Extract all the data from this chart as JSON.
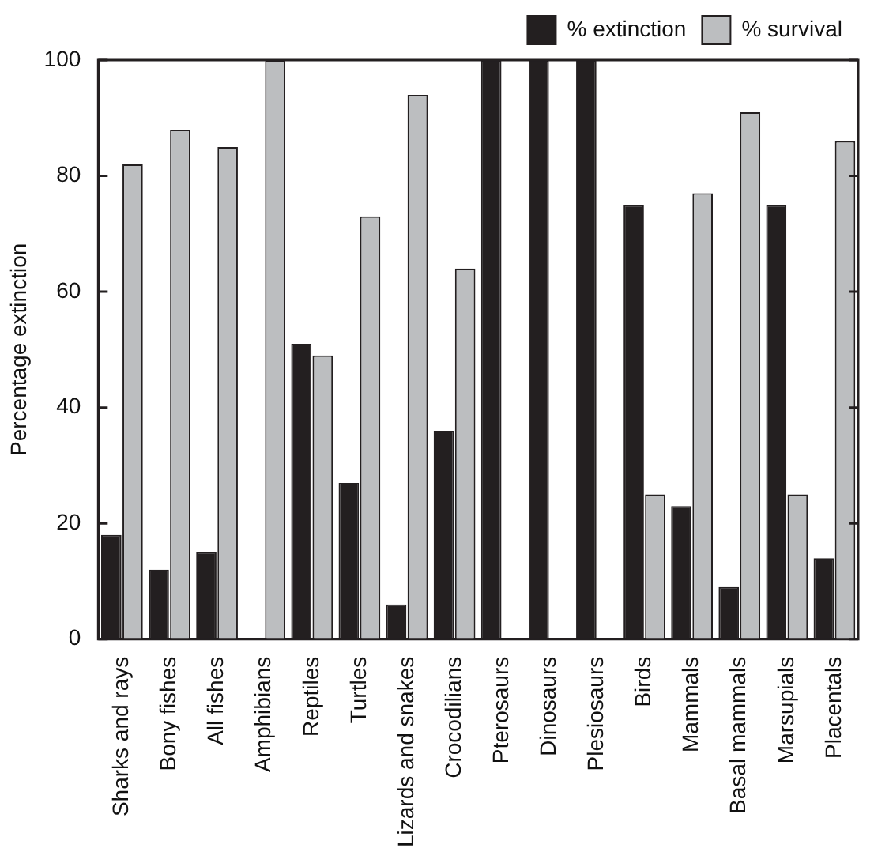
{
  "chart_data": {
    "type": "bar",
    "ylabel": "Percentage extinction",
    "categories": [
      "Sharks and rays",
      "Bony fishes",
      "All fishes",
      "Amphibians",
      "Reptiles",
      "Turtles",
      "Lizards and snakes",
      "Crocodilians",
      "Pterosaurs",
      "Dinosaurs",
      "Plesiosaurs",
      "Birds",
      "Mammals",
      "Basal mammals",
      "Marsupials",
      "Placentals"
    ],
    "series": [
      {
        "name": "% extinction",
        "color": "#231f20",
        "values": [
          18,
          12,
          15,
          0,
          51,
          27,
          6,
          36,
          100,
          100,
          100,
          75,
          23,
          9,
          75,
          14
        ]
      },
      {
        "name": "% survival",
        "color": "#bcbec0",
        "values": [
          82,
          88,
          85,
          100,
          49,
          73,
          94,
          64,
          0,
          0,
          0,
          25,
          77,
          91,
          25,
          86
        ]
      }
    ],
    "ylim": [
      0,
      100
    ],
    "yticks": [
      0,
      20,
      40,
      60,
      80,
      100
    ],
    "grid": false,
    "legend": "top right"
  }
}
